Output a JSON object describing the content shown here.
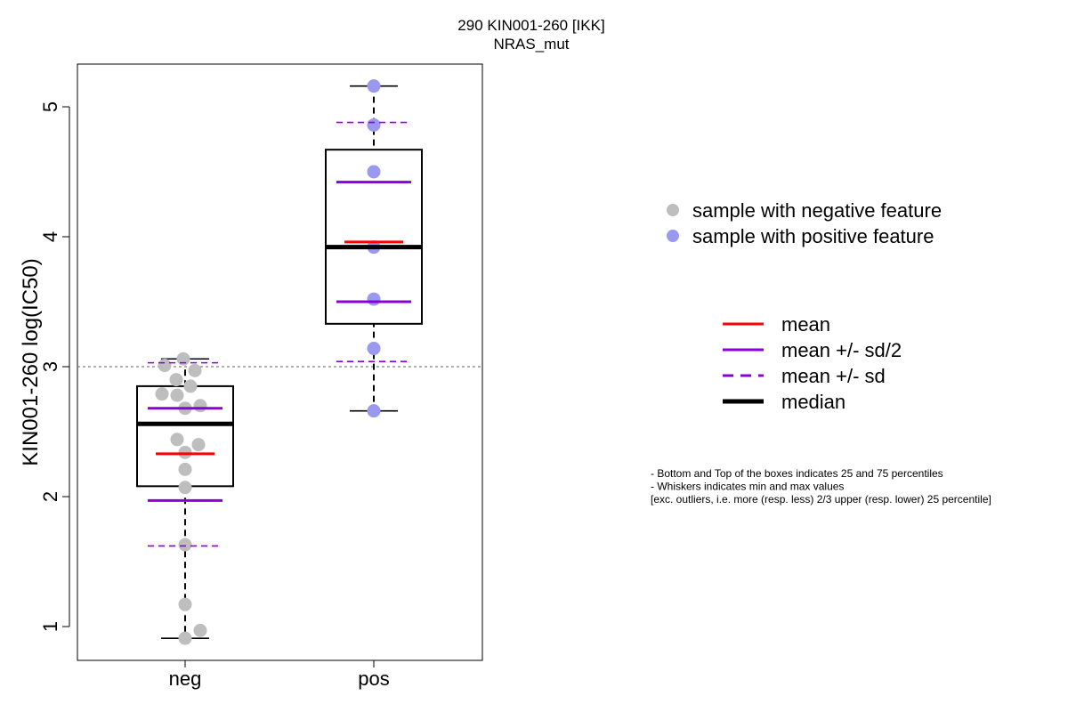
{
  "chart_data": {
    "type": "box",
    "title": "290 KIN001-260 [IKK]",
    "subtitle": "NRAS_mut",
    "xlabel": "",
    "ylabel": "KIN001-260 log(IC50)",
    "categories": [
      "neg",
      "pos"
    ],
    "ylim": [
      0.75,
      5.35
    ],
    "yticks": [
      1,
      2,
      3,
      4,
      5
    ],
    "threshold": 3.0,
    "grid": false,
    "groups": [
      {
        "category": "neg",
        "color": "#bebebe",
        "min": 0.91,
        "q1": 2.08,
        "median": 2.56,
        "q3": 2.85,
        "max": 3.06,
        "mean": 2.33,
        "mean_minus_half_sd": 1.97,
        "mean_plus_half_sd": 2.68,
        "mean_minus_sd": 1.62,
        "mean_plus_sd": 3.03,
        "points": [
          {
            "y": 3.06,
            "jitter": -0.02
          },
          {
            "y": 3.01,
            "jitter": -0.23
          },
          {
            "y": 2.97,
            "jitter": 0.11
          },
          {
            "y": 2.9,
            "jitter": -0.1
          },
          {
            "y": 2.85,
            "jitter": 0.06
          },
          {
            "y": 2.79,
            "jitter": -0.26
          },
          {
            "y": 2.78,
            "jitter": -0.09
          },
          {
            "y": 2.7,
            "jitter": 0.17
          },
          {
            "y": 2.68,
            "jitter": 0.0
          },
          {
            "y": 2.44,
            "jitter": -0.09
          },
          {
            "y": 2.4,
            "jitter": 0.15
          },
          {
            "y": 2.34,
            "jitter": 0.0
          },
          {
            "y": 2.21,
            "jitter": 0.0
          },
          {
            "y": 2.07,
            "jitter": 0.0
          },
          {
            "y": 1.63,
            "jitter": 0.0
          },
          {
            "y": 1.17,
            "jitter": 0.0
          },
          {
            "y": 0.97,
            "jitter": 0.17
          },
          {
            "y": 0.91,
            "jitter": 0.0
          }
        ]
      },
      {
        "category": "pos",
        "color": "#9999f0",
        "min": 2.66,
        "q1": 3.33,
        "median": 3.92,
        "q3": 4.67,
        "max": 5.16,
        "mean": 3.96,
        "mean_minus_half_sd": 3.5,
        "mean_plus_half_sd": 4.42,
        "mean_minus_sd": 3.04,
        "mean_plus_sd": 4.88,
        "points": [
          {
            "y": 5.16,
            "jitter": 0.0
          },
          {
            "y": 4.86,
            "jitter": 0.0
          },
          {
            "y": 4.5,
            "jitter": 0.0
          },
          {
            "y": 3.92,
            "jitter": 0.0
          },
          {
            "y": 3.52,
            "jitter": 0.0
          },
          {
            "y": 3.14,
            "jitter": 0.0
          },
          {
            "y": 2.66,
            "jitter": 0.0
          }
        ]
      }
    ],
    "colors": {
      "mean": "#ff0000",
      "sd": "#8b00d9",
      "median": "#000000",
      "threshold": "#808080"
    },
    "legend_points": [
      {
        "label": "sample with negative feature",
        "color": "#bebebe"
      },
      {
        "label": "sample with positive feature",
        "color": "#9999f0"
      }
    ],
    "legend_lines": [
      {
        "label": "mean",
        "color": "#ff0000",
        "style": "solid"
      },
      {
        "label": "mean +/- sd/2",
        "color": "#8b00d9",
        "style": "solid"
      },
      {
        "label": "mean +/- sd",
        "color": "#8b00d9",
        "style": "dashed"
      },
      {
        "label": "median",
        "color": "#000000",
        "style": "bold"
      }
    ],
    "legend_placement": "right",
    "notes": [
      "- Bottom and Top of the boxes indicates 25 and 75 percentiles",
      "- Whiskers indicates min and max values",
      "[exc. outliers, i.e. more (resp. less) 2/3 upper (resp. lower) 25 percentile]"
    ]
  }
}
